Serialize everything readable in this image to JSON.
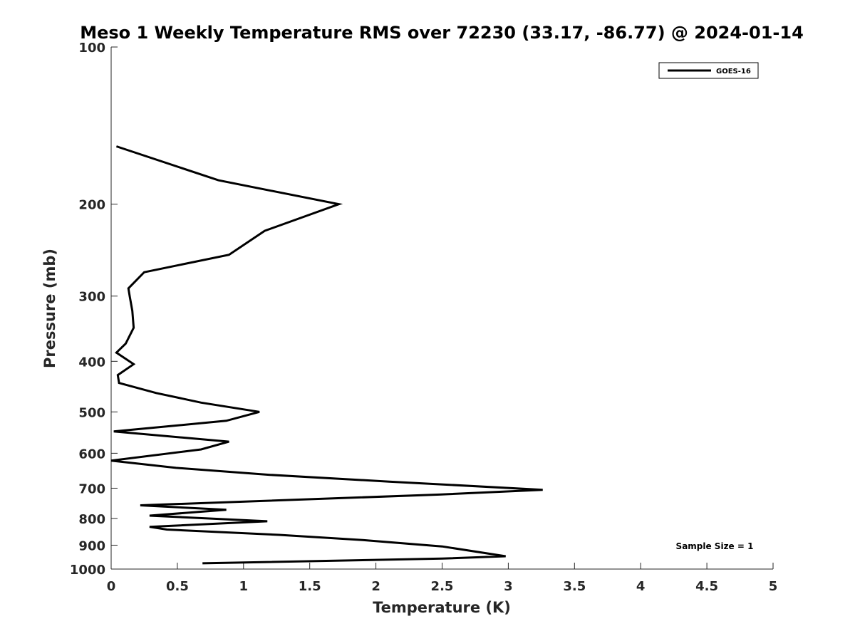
{
  "chart_data": {
    "type": "line",
    "title": "Meso 1 Weekly Temperature RMS over 72230 (33.17, -86.77) @ 2024-01-14",
    "xlabel": "Temperature (K)",
    "ylabel": "Pressure (mb)",
    "xlim": [
      0,
      5
    ],
    "ylim": [
      100,
      1000
    ],
    "y_scale": "log",
    "y_reversed": true,
    "x_ticks": [
      0,
      0.5,
      1,
      1.5,
      2,
      2.5,
      3,
      3.5,
      4,
      4.5,
      5
    ],
    "x_tick_labels": [
      "0",
      "0.5",
      "1",
      "1.5",
      "2",
      "2.5",
      "3",
      "3.5",
      "4",
      "4.5",
      "5"
    ],
    "y_ticks": [
      100,
      200,
      300,
      400,
      500,
      600,
      700,
      800,
      900,
      1000
    ],
    "y_tick_labels": [
      "100",
      "200",
      "300",
      "400",
      "500",
      "600",
      "700",
      "800",
      "900",
      "1000"
    ],
    "grid": false,
    "legend_position": "top-right",
    "series": [
      {
        "name": "GOES-16",
        "color": "#000000",
        "x": [
          0.69,
          2.5,
          2.98,
          2.5,
          1.9,
          1.27,
          0.42,
          0.29,
          1.18,
          0.29,
          0.87,
          0.22,
          2.48,
          3.26,
          2.1,
          1.2,
          0.49,
          0.0,
          0.68,
          0.89,
          0.02,
          0.87,
          1.12,
          0.68,
          0.34,
          0.06,
          0.05,
          0.17,
          0.04,
          0.11,
          0.17,
          0.16,
          0.14,
          0.13,
          0.25,
          0.89,
          1.16,
          1.72,
          0.81,
          0.04
        ],
        "y": [
          975,
          955,
          945,
          905,
          880,
          860,
          840,
          830,
          810,
          790,
          770,
          755,
          720,
          705,
          680,
          660,
          640,
          620,
          590,
          570,
          545,
          520,
          500,
          480,
          460,
          440,
          425,
          405,
          385,
          370,
          345,
          320,
          300,
          290,
          270,
          250,
          225,
          200,
          180,
          155
        ]
      }
    ]
  },
  "legend": {
    "label": "GOES-16"
  },
  "annotation": {
    "text": "Sample Size = 1"
  },
  "colors": {
    "line": "#000000",
    "axis": "#262626",
    "background": "#ffffff"
  }
}
